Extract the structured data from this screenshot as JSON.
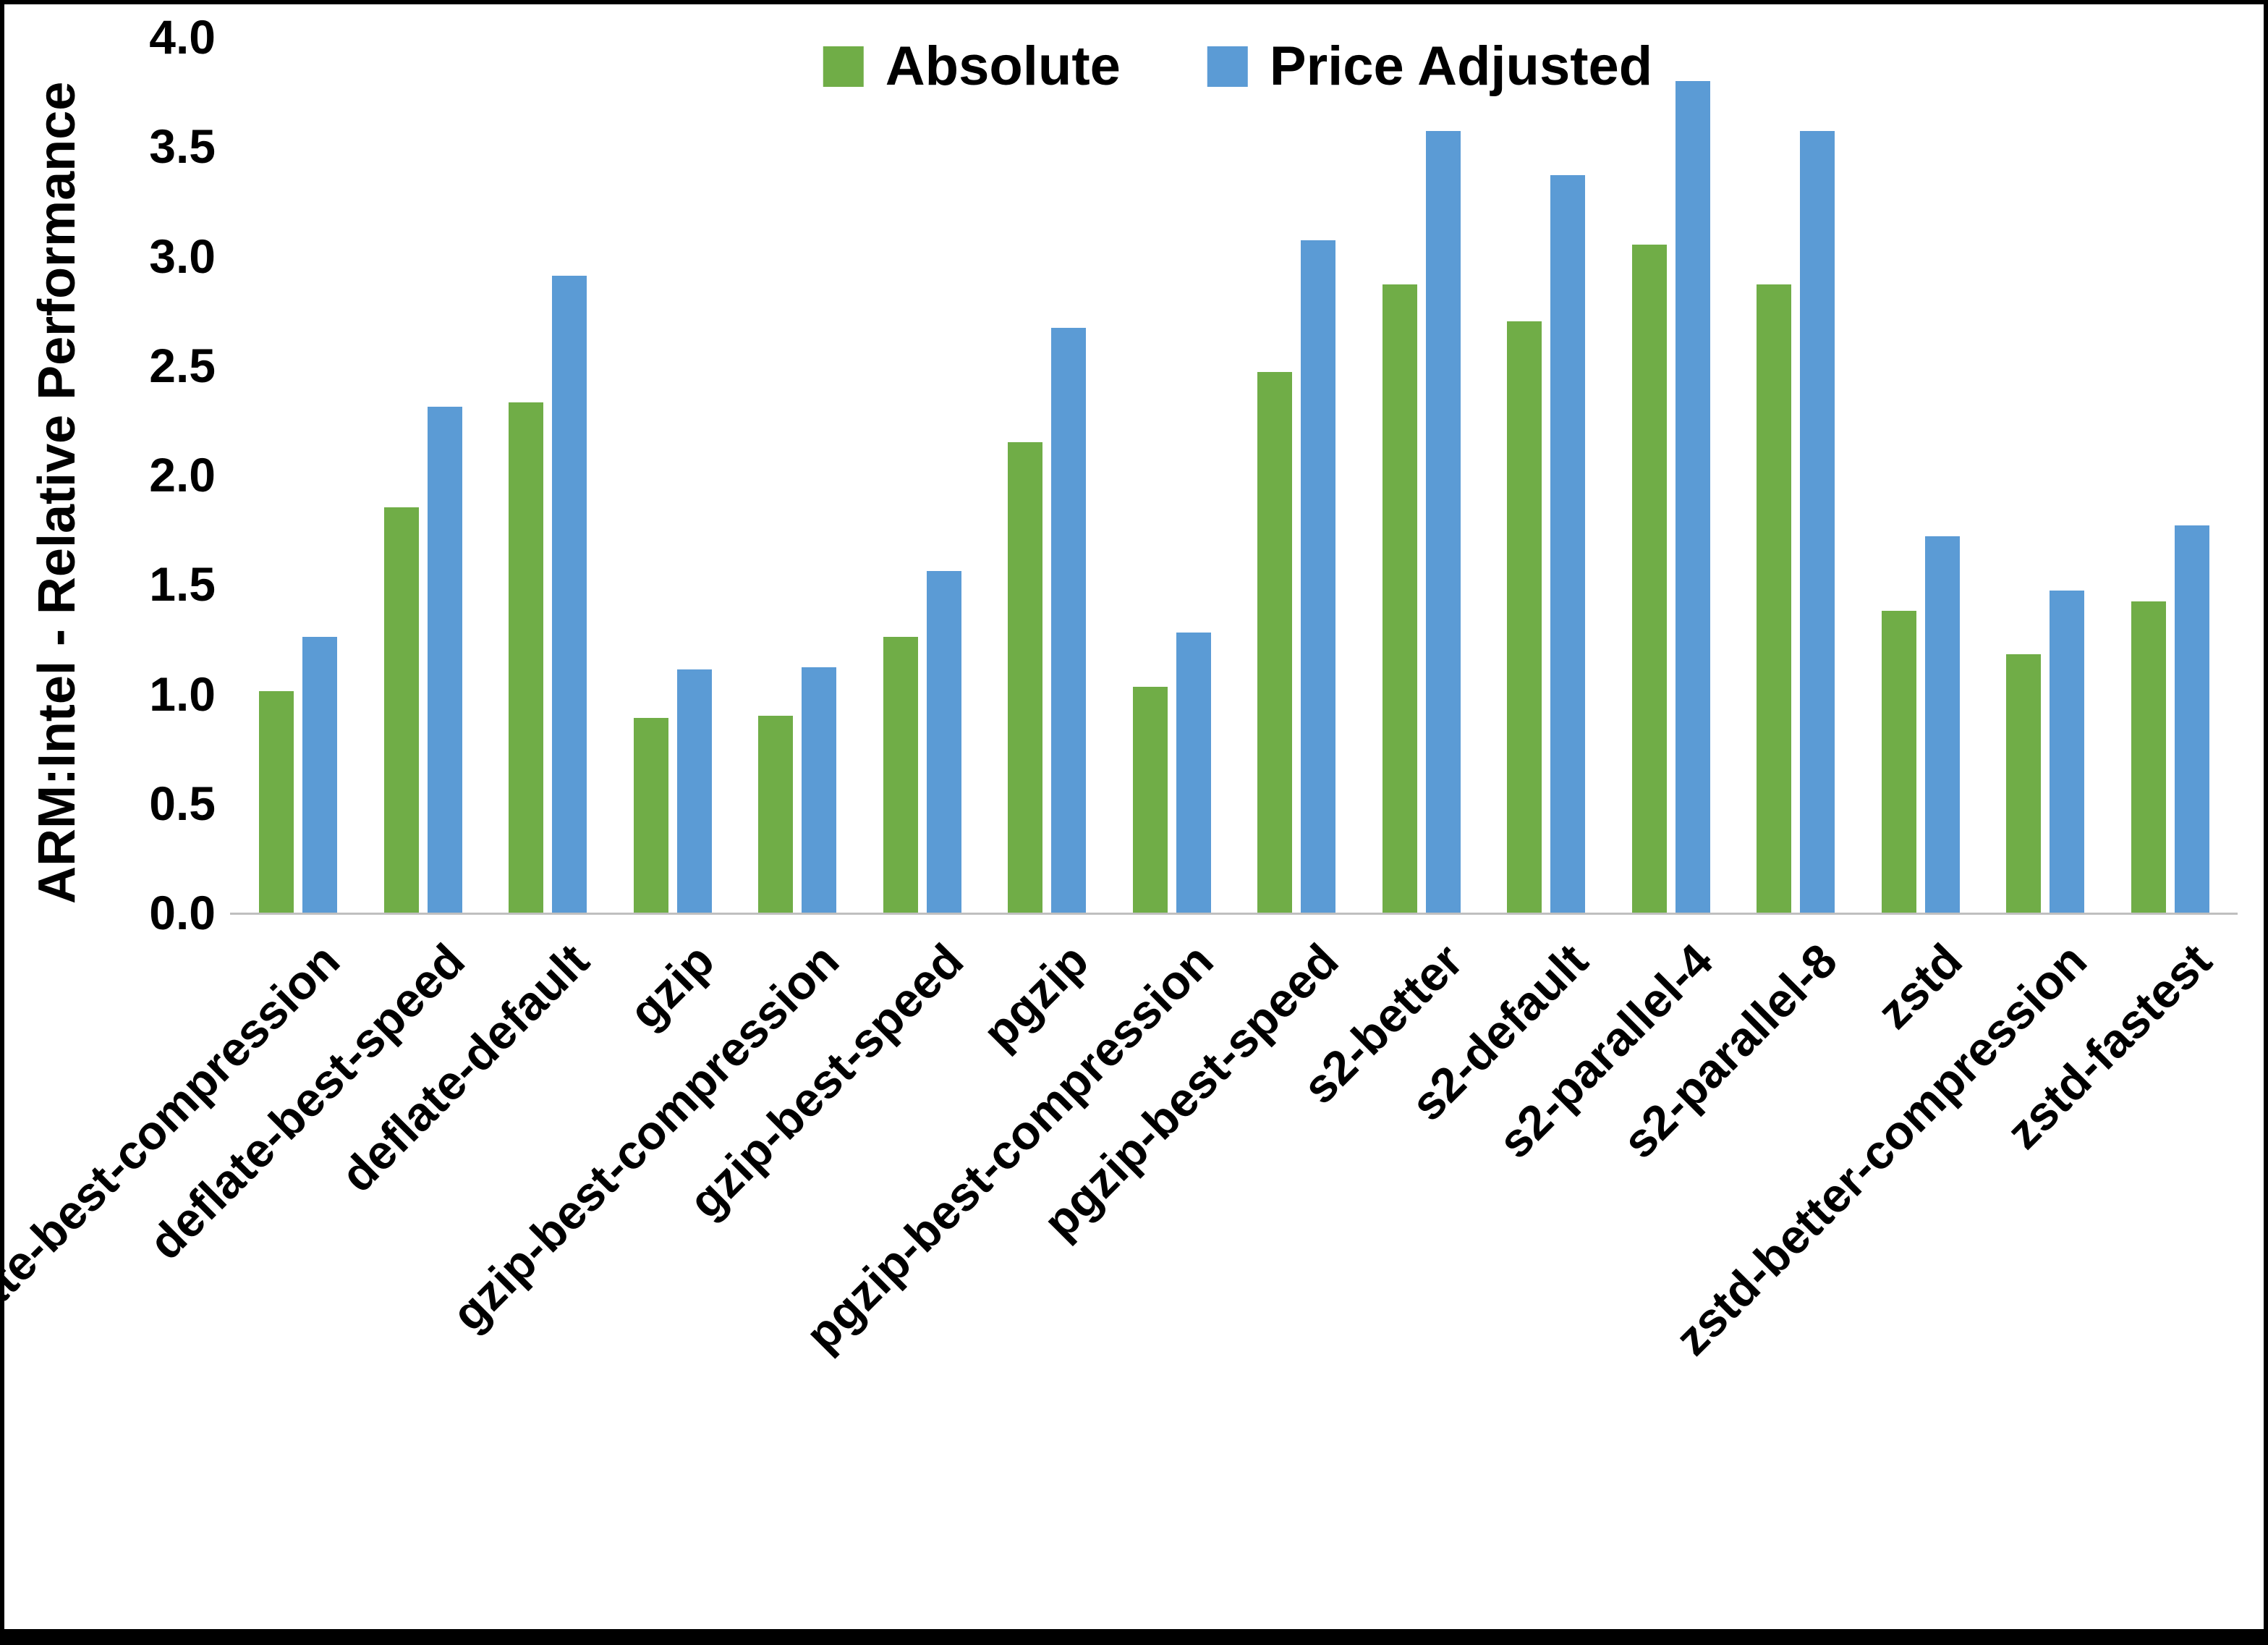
{
  "chart_data": {
    "type": "bar",
    "title": "",
    "xlabel": "",
    "ylabel": "ARM:Intel - Relative Performance",
    "ylim": [
      0.0,
      4.0
    ],
    "ytick_labels": [
      "0.0",
      "0.5",
      "1.0",
      "1.5",
      "2.0",
      "2.5",
      "3.0",
      "3.5",
      "4.0"
    ],
    "grid": false,
    "legend_position": "top-center",
    "categories": [
      "deflate-best-compression",
      "deflate-best-speed",
      "deflate-default",
      "gzip",
      "gzip-best-compression",
      "gzip-best-speed",
      "pgzip",
      "pgzip-best-compression",
      "pgzip-best-speed",
      "s2-better",
      "s2-default",
      "s2-parallel-4",
      "s2-parallel-8",
      "zstd",
      "zstd-better-compression",
      "zstd-fastest"
    ],
    "series": [
      {
        "name": "Absolute",
        "color": "#70AD47",
        "values": [
          1.01,
          1.85,
          2.33,
          0.89,
          0.9,
          1.26,
          2.15,
          1.03,
          2.47,
          2.87,
          2.7,
          3.05,
          2.87,
          1.38,
          1.18,
          1.42
        ]
      },
      {
        "name": "Price Adjusted",
        "color": "#5B9BD5",
        "values": [
          1.26,
          2.31,
          2.91,
          1.11,
          1.12,
          1.56,
          2.67,
          1.28,
          3.07,
          3.57,
          3.37,
          3.8,
          3.57,
          1.72,
          1.47,
          1.77
        ]
      }
    ]
  }
}
